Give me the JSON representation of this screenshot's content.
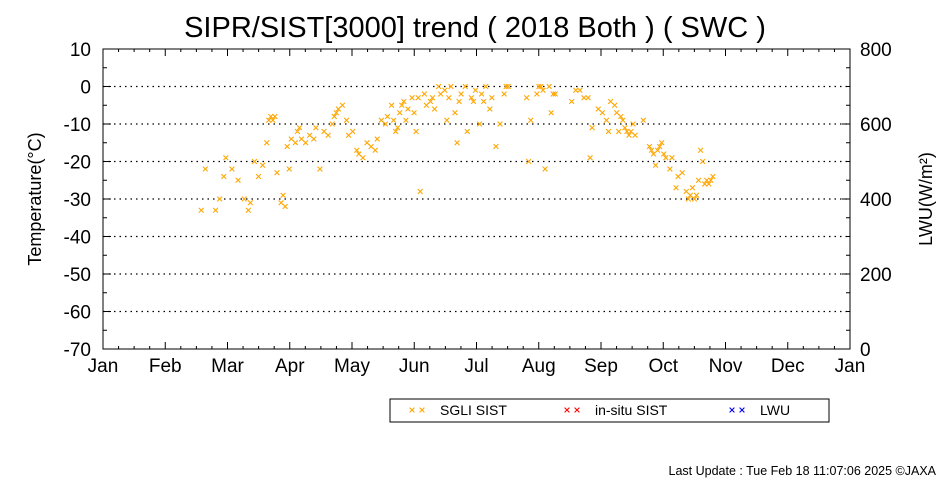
{
  "chart_data": {
    "type": "scatter",
    "title": "SIPR/SIST[3000] trend ( 2018 Both ) ( SWC )",
    "ylabel": "Temperature(°C)",
    "y2label": "LWU(W/m²)",
    "ylim": [
      -70,
      10
    ],
    "y2lim": [
      0,
      800
    ],
    "yticks": [
      10,
      0,
      -10,
      -20,
      -30,
      -40,
      -50,
      -60,
      -70
    ],
    "y2ticks": [
      800,
      600,
      400,
      200,
      0
    ],
    "xticks": [
      "Jan",
      "Feb",
      "Mar",
      "Apr",
      "May",
      "Jun",
      "Jul",
      "Aug",
      "Sep",
      "Oct",
      "Nov",
      "Dec",
      "Jan"
    ],
    "grid": "dotted horizontal",
    "legend_placement": "bottom",
    "series": [
      {
        "name": "SGLI SIST",
        "color": "#ffa500",
        "points": [
          [
            "2018-02-18",
            -33
          ],
          [
            "2018-02-20",
            -22
          ],
          [
            "2018-02-25",
            -33
          ],
          [
            "2018-02-27",
            -30
          ],
          [
            "2018-03-01",
            -24
          ],
          [
            "2018-03-02",
            -19
          ],
          [
            "2018-03-05",
            -22
          ],
          [
            "2018-03-08",
            -25
          ],
          [
            "2018-03-11",
            -30
          ],
          [
            "2018-03-13",
            -33
          ],
          [
            "2018-03-14",
            -31
          ],
          [
            "2018-03-16",
            -20
          ],
          [
            "2018-03-18",
            -24
          ],
          [
            "2018-03-20",
            -21
          ],
          [
            "2018-03-22",
            -15
          ],
          [
            "2018-03-23",
            -9
          ],
          [
            "2018-03-24",
            -8
          ],
          [
            "2018-03-25",
            -9
          ],
          [
            "2018-03-26",
            -8
          ],
          [
            "2018-03-27",
            -23
          ],
          [
            "2018-03-29",
            -31
          ],
          [
            "2018-03-30",
            -29
          ],
          [
            "2018-03-31",
            -32
          ],
          [
            "2018-04-01",
            -16
          ],
          [
            "2018-04-02",
            -22
          ],
          [
            "2018-04-03",
            -14
          ],
          [
            "2018-04-05",
            -15
          ],
          [
            "2018-04-06",
            -12
          ],
          [
            "2018-04-07",
            -11
          ],
          [
            "2018-04-08",
            -14
          ],
          [
            "2018-04-10",
            -15
          ],
          [
            "2018-04-12",
            -13
          ],
          [
            "2018-04-14",
            -14
          ],
          [
            "2018-04-15",
            -11
          ],
          [
            "2018-04-17",
            -22
          ],
          [
            "2018-04-19",
            -12
          ],
          [
            "2018-04-21",
            -13
          ],
          [
            "2018-04-23",
            -10
          ],
          [
            "2018-04-24",
            -8
          ],
          [
            "2018-04-25",
            -7
          ],
          [
            "2018-04-26",
            -6
          ],
          [
            "2018-04-28",
            -5
          ],
          [
            "2018-04-30",
            -9
          ],
          [
            "2018-05-01",
            -13
          ],
          [
            "2018-05-03",
            -12
          ],
          [
            "2018-05-05",
            -17
          ],
          [
            "2018-05-06",
            -18
          ],
          [
            "2018-05-08",
            -19
          ],
          [
            "2018-05-10",
            -15
          ],
          [
            "2018-05-12",
            -16
          ],
          [
            "2018-05-14",
            -17
          ],
          [
            "2018-05-15",
            -14
          ],
          [
            "2018-05-17",
            -9
          ],
          [
            "2018-05-19",
            -10
          ],
          [
            "2018-05-20",
            -8
          ],
          [
            "2018-05-22",
            -5
          ],
          [
            "2018-05-23",
            -9
          ],
          [
            "2018-05-24",
            -12
          ],
          [
            "2018-05-25",
            -11
          ],
          [
            "2018-05-26",
            -7
          ],
          [
            "2018-05-27",
            -5
          ],
          [
            "2018-05-28",
            -4
          ],
          [
            "2018-05-29",
            -9
          ],
          [
            "2018-05-30",
            -6
          ],
          [
            "2018-06-01",
            -3
          ],
          [
            "2018-06-02",
            -7
          ],
          [
            "2018-06-03",
            -12
          ],
          [
            "2018-06-04",
            -3
          ],
          [
            "2018-06-05",
            -28
          ],
          [
            "2018-06-07",
            -2
          ],
          [
            "2018-06-08",
            -5
          ],
          [
            "2018-06-10",
            -4
          ],
          [
            "2018-06-11",
            -3
          ],
          [
            "2018-06-12",
            -6
          ],
          [
            "2018-06-14",
            0
          ],
          [
            "2018-06-15",
            -2
          ],
          [
            "2018-06-17",
            -1
          ],
          [
            "2018-06-18",
            -9
          ],
          [
            "2018-06-19",
            -3
          ],
          [
            "2018-06-20",
            0
          ],
          [
            "2018-06-22",
            -7
          ],
          [
            "2018-06-23",
            -15
          ],
          [
            "2018-06-24",
            -4
          ],
          [
            "2018-06-25",
            -2
          ],
          [
            "2018-06-27",
            0
          ],
          [
            "2018-06-28",
            -12
          ],
          [
            "2018-06-30",
            -3
          ],
          [
            "2018-07-01",
            -4
          ],
          [
            "2018-07-02",
            -1
          ],
          [
            "2018-07-04",
            -10
          ],
          [
            "2018-07-05",
            -2
          ],
          [
            "2018-07-06",
            -4
          ],
          [
            "2018-07-07",
            0
          ],
          [
            "2018-07-09",
            -6
          ],
          [
            "2018-07-10",
            -3
          ],
          [
            "2018-07-12",
            -16
          ],
          [
            "2018-07-14",
            -10
          ],
          [
            "2018-07-16",
            -2
          ],
          [
            "2018-07-17",
            0
          ],
          [
            "2018-07-18",
            0
          ],
          [
            "2018-07-27",
            -3
          ],
          [
            "2018-07-28",
            -20
          ],
          [
            "2018-07-29",
            -9
          ],
          [
            "2018-08-01",
            -2
          ],
          [
            "2018-08-02",
            0
          ],
          [
            "2018-08-03",
            0
          ],
          [
            "2018-08-04",
            -1
          ],
          [
            "2018-08-05",
            -22
          ],
          [
            "2018-08-07",
            0
          ],
          [
            "2018-08-08",
            -7
          ],
          [
            "2018-08-09",
            -2
          ],
          [
            "2018-08-10",
            -2
          ],
          [
            "2018-08-18",
            -4
          ],
          [
            "2018-08-20",
            -1
          ],
          [
            "2018-08-22",
            -1
          ],
          [
            "2018-08-24",
            -3
          ],
          [
            "2018-08-26",
            -3
          ],
          [
            "2018-08-27",
            -19
          ],
          [
            "2018-08-28",
            -11
          ],
          [
            "2018-08-31",
            -6
          ],
          [
            "2018-09-02",
            -7
          ],
          [
            "2018-09-04",
            -9
          ],
          [
            "2018-09-05",
            -12
          ],
          [
            "2018-09-06",
            -4
          ],
          [
            "2018-09-08",
            -5
          ],
          [
            "2018-09-09",
            -7
          ],
          [
            "2018-09-10",
            -12
          ],
          [
            "2018-09-11",
            -8
          ],
          [
            "2018-09-12",
            -9
          ],
          [
            "2018-09-13",
            -11
          ],
          [
            "2018-09-14",
            -12
          ],
          [
            "2018-09-15",
            -13
          ],
          [
            "2018-09-16",
            -12
          ],
          [
            "2018-09-17",
            -10
          ],
          [
            "2018-09-18",
            -13
          ],
          [
            "2018-09-22",
            -9
          ],
          [
            "2018-09-25",
            -16
          ],
          [
            "2018-09-26",
            -17
          ],
          [
            "2018-09-27",
            -18
          ],
          [
            "2018-09-28",
            -21
          ],
          [
            "2018-09-29",
            -17
          ],
          [
            "2018-09-30",
            -16
          ],
          [
            "2018-10-01",
            -15
          ],
          [
            "2018-10-02",
            -18
          ],
          [
            "2018-10-03",
            -19
          ],
          [
            "2018-10-05",
            -22
          ],
          [
            "2018-10-06",
            -19
          ],
          [
            "2018-10-08",
            -27
          ],
          [
            "2018-10-09",
            -24
          ],
          [
            "2018-10-11",
            -23
          ],
          [
            "2018-10-13",
            -28
          ],
          [
            "2018-10-14",
            -30
          ],
          [
            "2018-10-15",
            -29
          ],
          [
            "2018-10-16",
            -27
          ],
          [
            "2018-10-17",
            -30
          ],
          [
            "2018-10-18",
            -29
          ],
          [
            "2018-10-19",
            -25
          ],
          [
            "2018-10-20",
            -17
          ],
          [
            "2018-10-21",
            -20
          ],
          [
            "2018-10-22",
            -26
          ],
          [
            "2018-10-23",
            -25
          ],
          [
            "2018-10-24",
            -26
          ],
          [
            "2018-10-25",
            -25
          ],
          [
            "2018-10-26",
            -24
          ]
        ]
      },
      {
        "name": "in-situ SIST",
        "color": "#ff0000",
        "points": []
      },
      {
        "name": "LWU",
        "color": "#0000ff",
        "points": []
      }
    ]
  },
  "footer": {
    "last_update": "Last Update : Tue Feb 18 11:07:06 2025  ©JAXA"
  }
}
